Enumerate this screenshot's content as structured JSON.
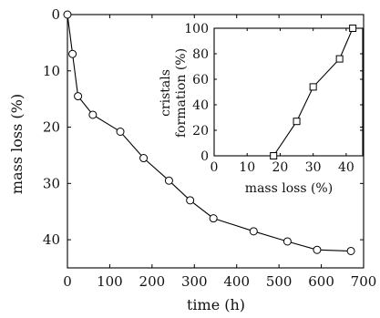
{
  "chart_data": [
    {
      "type": "line",
      "xlabel": "time (h)",
      "ylabel": "mass loss (%)",
      "xlim": [
        0,
        700
      ],
      "ylim": [
        0,
        45
      ],
      "y_inverted": true,
      "grid": false,
      "x_ticks": [
        0,
        100,
        200,
        300,
        400,
        500,
        600,
        700
      ],
      "y_ticks": [
        0,
        10,
        20,
        30,
        40
      ],
      "marker": "circle-open",
      "series": [
        {
          "x": [
            0,
            12,
            25,
            60,
            125,
            180,
            240,
            290,
            345,
            440,
            520,
            590,
            670
          ],
          "y": [
            0,
            7,
            14.5,
            17.8,
            20.8,
            25.5,
            29.5,
            33,
            36.2,
            38.5,
            40.3,
            41.8,
            42
          ]
        }
      ]
    },
    {
      "type": "line",
      "xlabel": "mass loss (%)",
      "ylabel_lines": [
        "cristals",
        "formation (%)"
      ],
      "xlim": [
        0,
        45
      ],
      "ylim": [
        0,
        100
      ],
      "grid": false,
      "x_ticks": [
        0,
        10,
        20,
        30,
        40
      ],
      "y_ticks": [
        0,
        20,
        40,
        60,
        80,
        100
      ],
      "marker": "square-open",
      "series": [
        {
          "x": [
            18,
            25,
            30,
            38,
            42
          ],
          "y": [
            0,
            27,
            54,
            76,
            100
          ]
        }
      ]
    }
  ]
}
